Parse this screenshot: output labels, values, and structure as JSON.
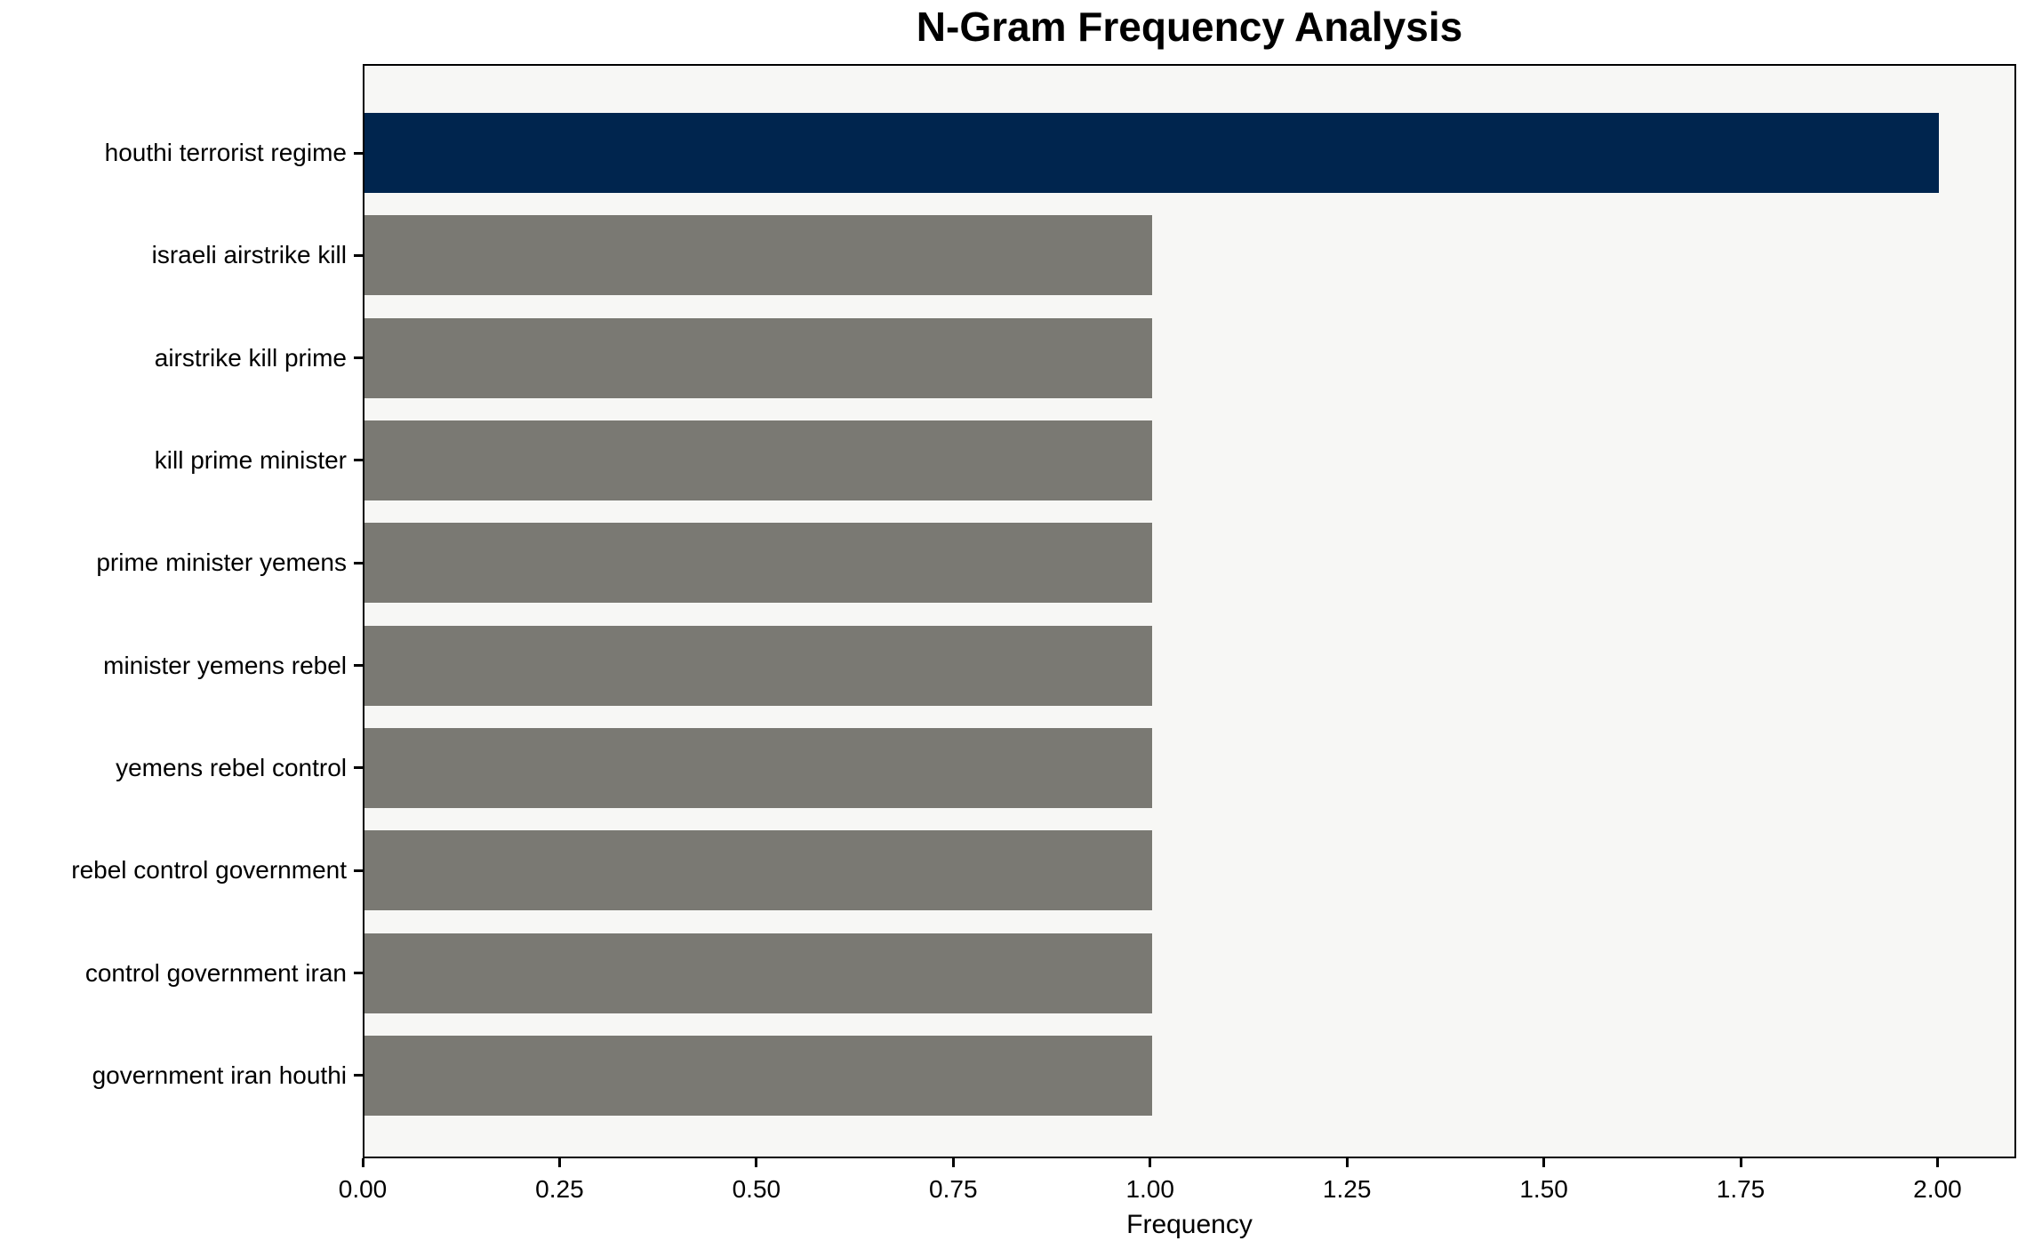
{
  "page": {
    "background_color": "#ffffff"
  },
  "chart_data": {
    "type": "bar",
    "orientation": "horizontal",
    "title": "N-Gram Frequency Analysis",
    "xlabel": "Frequency",
    "ylabel": "",
    "categories": [
      "houthi terrorist regime",
      "israeli airstrike kill",
      "airstrike kill prime",
      "kill prime minister",
      "prime minister yemens",
      "minister yemens rebel",
      "yemens rebel control",
      "rebel control government",
      "control government iran",
      "government iran houthi"
    ],
    "values": [
      2,
      1,
      1,
      1,
      1,
      1,
      1,
      1,
      1,
      1
    ],
    "bar_colors": [
      "#00254e",
      "#7a7973",
      "#7a7973",
      "#7a7973",
      "#7a7973",
      "#7a7973",
      "#7a7973",
      "#7a7973",
      "#7a7973",
      "#7a7973"
    ],
    "xlim": [
      0,
      2.1
    ],
    "xticks": {
      "values": [
        0,
        0.25,
        0.5,
        0.75,
        1.0,
        1.25,
        1.5,
        1.75,
        2.0
      ],
      "labels": [
        "0.00",
        "0.25",
        "0.50",
        "0.75",
        "1.00",
        "1.25",
        "1.50",
        "1.75",
        "2.00"
      ]
    },
    "grid": false,
    "legend": "none",
    "colors": {
      "highlight_bar": "#00254e",
      "default_bar": "#7a7973",
      "plot_background": "#f7f7f5",
      "spine": "#000000",
      "text": "#000000"
    }
  }
}
